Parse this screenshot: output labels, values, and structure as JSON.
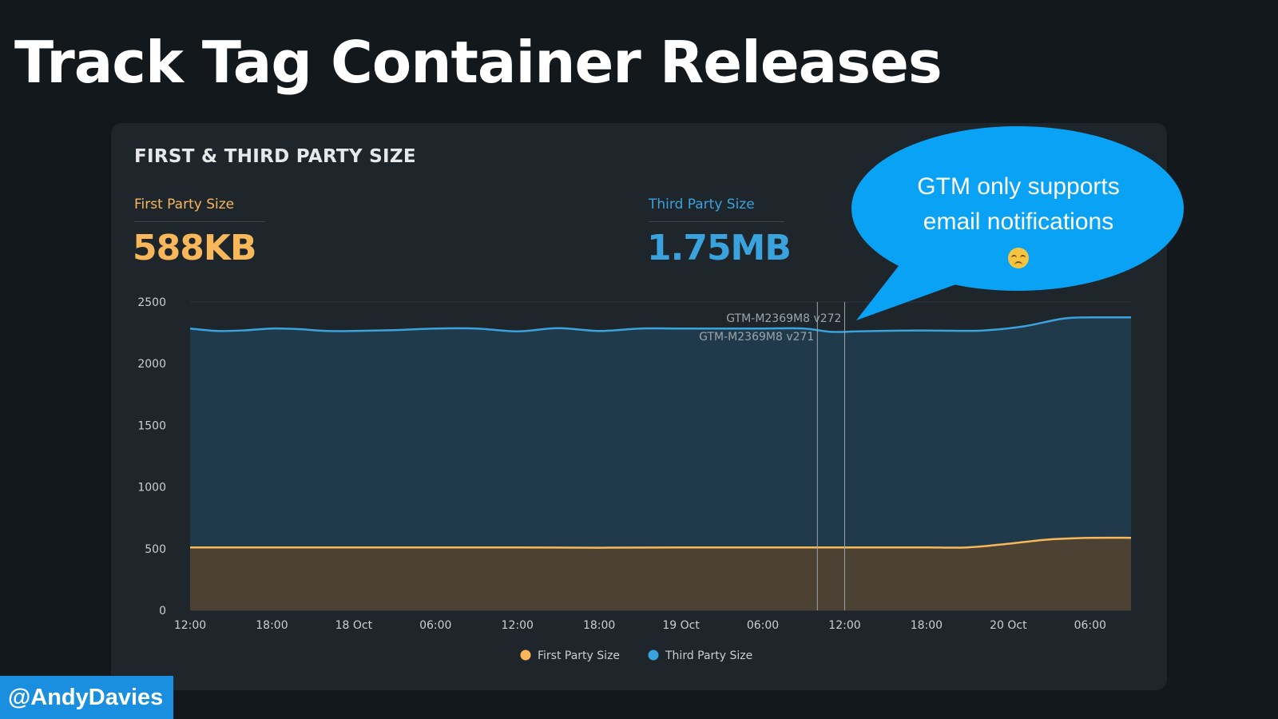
{
  "slide": {
    "title": "Track Tag Container Releases",
    "handle": "@AndyDavies"
  },
  "panel": {
    "title": "FIRST & THIRD PARTY SIZE",
    "first_party": {
      "label": "First Party Size",
      "value": "588KB",
      "color": "#f7b75a"
    },
    "third_party": {
      "label": "Third Party Size",
      "value": "1.75MB",
      "color": "#3aa2dc"
    }
  },
  "callout": {
    "line1": "GTM only supports",
    "line2": "email notifications",
    "emoji": "disappointed-face-icon",
    "color": "#0aa2f5"
  },
  "chart_data": {
    "type": "area",
    "ylim": [
      0,
      2500
    ],
    "yticks": [
      0,
      500,
      1000,
      1500,
      2000,
      2500
    ],
    "xlim": [
      0,
      69
    ],
    "xticks": [
      {
        "x": 0,
        "label": "12:00"
      },
      {
        "x": 6,
        "label": "18:00"
      },
      {
        "x": 12,
        "label": "18 Oct"
      },
      {
        "x": 18,
        "label": "06:00"
      },
      {
        "x": 24,
        "label": "12:00"
      },
      {
        "x": 30,
        "label": "18:00"
      },
      {
        "x": 36,
        "label": "19 Oct"
      },
      {
        "x": 42,
        "label": "06:00"
      },
      {
        "x": 48,
        "label": "12:00"
      },
      {
        "x": 54,
        "label": "18:00"
      },
      {
        "x": 60,
        "label": "20 Oct"
      },
      {
        "x": 66,
        "label": "06:00"
      }
    ],
    "series": [
      {
        "name": "First Party Size",
        "color": "#f7b75a",
        "fill": "#4b4233",
        "x": [
          0,
          6,
          12,
          18,
          24,
          30,
          36,
          42,
          48,
          54,
          57,
          60,
          63,
          66,
          69
        ],
        "y": [
          510,
          510,
          510,
          510,
          510,
          508,
          510,
          510,
          510,
          510,
          510,
          540,
          575,
          588,
          588
        ]
      },
      {
        "name": "Third Party Size",
        "color": "#3aa2dc",
        "fill": "#213a4b",
        "x": [
          0,
          2,
          4,
          6,
          8,
          10,
          12,
          15,
          18,
          21,
          24,
          27,
          30,
          33,
          36,
          39,
          42,
          45,
          47,
          49,
          52,
          55,
          58,
          61,
          64,
          66,
          69
        ],
        "y": [
          2285,
          2265,
          2270,
          2285,
          2280,
          2265,
          2265,
          2272,
          2285,
          2285,
          2262,
          2288,
          2265,
          2285,
          2285,
          2285,
          2285,
          2285,
          2258,
          2262,
          2268,
          2268,
          2268,
          2300,
          2365,
          2375,
          2375
        ]
      }
    ],
    "annotations": [
      {
        "x": 46,
        "label": "GTM-M2369M8 v271"
      },
      {
        "x": 48,
        "label": "GTM-M2369M8 v272"
      }
    ],
    "legend": [
      "First Party Size",
      "Third Party Size"
    ],
    "legend_position": "bottom",
    "grid": true
  }
}
